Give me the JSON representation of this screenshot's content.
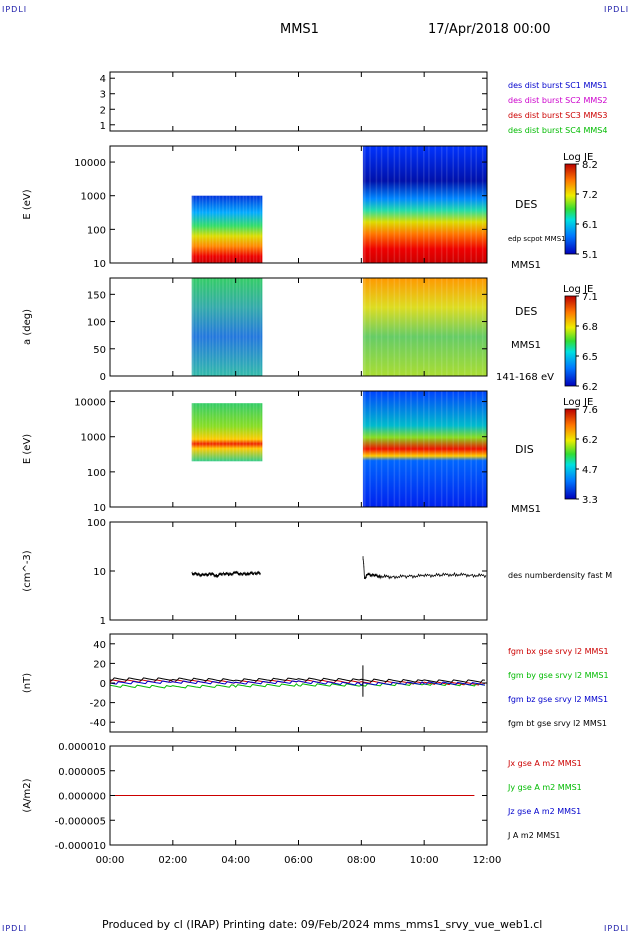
{
  "header": {
    "mission": "MMS1",
    "date": "17/Apr/2018 00:00",
    "corner_tl": "IPDLI",
    "corner_tr": "IPDLI",
    "corner_bl": "IPDLI",
    "corner_br": "IPDLI"
  },
  "footer": {
    "text": "Produced by cl (IRAP)   Printing date: 09/Feb/2024   mms_mms1_srvy_vue_web1.cl"
  },
  "chart_data": {
    "type": "line",
    "x_ticks": [
      "00:00",
      "02:00",
      "04:00",
      "06:00",
      "08:00",
      "10:00",
      "12:00"
    ],
    "x_range_hours": [
      0,
      12
    ],
    "panels": [
      {
        "id": "burst-availability",
        "type": "line",
        "ylabel": "",
        "yticks": [
          "1",
          "2",
          "3",
          "4"
        ],
        "ylim": [
          0.6,
          4.4
        ],
        "legend": [
          {
            "label": "des dist burst SC1 MMS1",
            "color": "#0000cc"
          },
          {
            "label": "des dist burst SC2 MMS2",
            "color": "#cc00cc"
          },
          {
            "label": "des dist burst SC3 MMS3",
            "color": "#cc0000"
          },
          {
            "label": "des dist burst SC4 MMS4",
            "color": "#00bb00"
          }
        ]
      },
      {
        "id": "des-energy",
        "type": "heatmap",
        "ylabel": "E (eV)",
        "yscale": "log",
        "yticks": [
          "10",
          "100",
          "1000",
          "10000"
        ],
        "ylim": [
          10,
          30000
        ],
        "species": "DES",
        "sc": "MMS1",
        "overlay": "edp scpot MMS1",
        "colorbar": {
          "title": "Log JE",
          "ticks": [
            "8.2",
            "7.2",
            "6.1",
            "5.1"
          ],
          "range": [
            5.1,
            8.2
          ]
        },
        "intervals_hours": [
          [
            2.6,
            4.85
          ],
          [
            8.05,
            12.0
          ]
        ]
      },
      {
        "id": "des-pitch",
        "type": "heatmap",
        "ylabel": "a (deg)",
        "yticks": [
          "0",
          "50",
          "100",
          "150"
        ],
        "ylim": [
          0,
          180
        ],
        "species": "DES",
        "sc": "MMS1",
        "energy_band": "141-168 eV",
        "colorbar": {
          "title": "Log JE",
          "ticks": [
            "7.1",
            "6.8",
            "6.5",
            "6.2"
          ],
          "range": [
            6.2,
            7.1
          ]
        },
        "intervals_hours": [
          [
            2.6,
            4.85
          ],
          [
            8.05,
            12.0
          ]
        ]
      },
      {
        "id": "dis-energy",
        "type": "heatmap",
        "ylabel": "E (eV)",
        "yscale": "log",
        "yticks": [
          "10",
          "100",
          "1000",
          "10000"
        ],
        "ylim": [
          10,
          20000
        ],
        "species": "DIS",
        "sc": "MMS1",
        "colorbar": {
          "title": "Log JE",
          "ticks": [
            "7.6",
            "6.2",
            "4.7",
            "3.3"
          ],
          "range": [
            3.3,
            7.6
          ]
        },
        "intervals_hours": [
          [
            2.6,
            4.85
          ],
          [
            8.05,
            12.0
          ]
        ]
      },
      {
        "id": "density",
        "type": "line",
        "ylabel": "(cm^-3)",
        "yscale": "log",
        "yticks": [
          "1",
          "10",
          "100"
        ],
        "ylim": [
          1,
          100
        ],
        "legend": [
          {
            "label": "des numberdensity fast M",
            "color": "#000000"
          }
        ],
        "series": [
          {
            "name": "des numberdensity fast",
            "x": [
              2.6,
              2.8,
              3.0,
              3.2,
              3.4,
              3.6,
              3.8,
              4.0,
              4.2,
              4.4,
              4.6,
              4.8
            ],
            "y": [
              9,
              8.5,
              8.2,
              8.8,
              8,
              9,
              8.5,
              9.2,
              8.6,
              8.9,
              9.1,
              9
            ],
            "x2": [
              8.05,
              8.1,
              8.2,
              8.4,
              8.6,
              9.0,
              9.5,
              10.0,
              10.5,
              11.0,
              11.5,
              12.0
            ],
            "y2": [
              20,
              7,
              8.5,
              8.2,
              7.8,
              7.6,
              7.8,
              8,
              8.3,
              8.5,
              8.2,
              8
            ]
          }
        ]
      },
      {
        "id": "fgm",
        "type": "line",
        "ylabel": "(nT)",
        "yticks": [
          "-40",
          "-20",
          "0",
          "20",
          "40"
        ],
        "ylim": [
          -50,
          50
        ],
        "legend": [
          {
            "label": "fgm bx gse srvy l2 MMS1",
            "color": "#cc0000"
          },
          {
            "label": "fgm by gse srvy l2 MMS1",
            "color": "#00bb00"
          },
          {
            "label": "fgm bz gse srvy l2 MMS1",
            "color": "#0000cc"
          },
          {
            "label": "fgm bt gse srvy l2 MMS1",
            "color": "#000000"
          }
        ],
        "series": [
          {
            "name": "bx",
            "x": [
              0,
              2,
              4,
              6,
              8,
              10,
              12
            ],
            "y": [
              2,
              2,
              1,
              2,
              1,
              0,
              -1
            ]
          },
          {
            "name": "by",
            "x": [
              0,
              2,
              4,
              6,
              8,
              10,
              12
            ],
            "y": [
              -3,
              -4,
              -3,
              -2,
              -2,
              -1,
              -2
            ]
          },
          {
            "name": "bz",
            "x": [
              0,
              2,
              4,
              6,
              8,
              10,
              12
            ],
            "y": [
              0,
              1,
              0,
              1,
              -1,
              0,
              -1
            ]
          },
          {
            "name": "bt",
            "x": [
              0,
              2,
              4,
              6,
              8,
              10,
              12
            ],
            "y": [
              4,
              4,
              3,
              4,
              3,
              2,
              2
            ]
          }
        ]
      },
      {
        "id": "current",
        "type": "line",
        "ylabel": "(A/m2)",
        "yticks": [
          "-0.000010",
          "-0.000005",
          "0.000000",
          "0.000005",
          "0.000010"
        ],
        "ylim": [
          -1e-05,
          1e-05
        ],
        "legend": [
          {
            "label": "Jx gse A m2 MMS1",
            "color": "#cc0000"
          },
          {
            "label": "Jy gse A m2 MMS1",
            "color": "#00bb00"
          },
          {
            "label": "Jz gse A m2 MMS1",
            "color": "#0000cc"
          },
          {
            "label": "J A m2 MMS1",
            "color": "#000000"
          }
        ],
        "series": [
          {
            "name": "J",
            "x": [
              0,
              12
            ],
            "y": [
              0,
              0
            ]
          }
        ]
      }
    ]
  }
}
